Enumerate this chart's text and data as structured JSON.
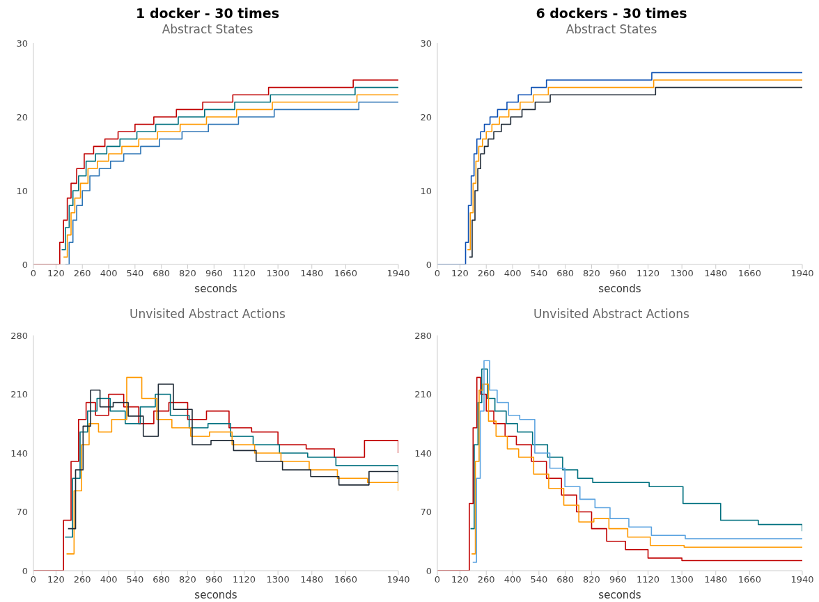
{
  "chart_data": [
    {
      "type": "step",
      "title": "1 docker - 30 times",
      "subtitle": "Abstract States",
      "xlabel": "seconds",
      "xlim": [
        0,
        1940
      ],
      "xticks": [
        0,
        120,
        260,
        400,
        540,
        680,
        820,
        960,
        1120,
        1300,
        1480,
        1660,
        1940
      ],
      "ylim": [
        0,
        30
      ],
      "yticks": [
        0,
        10,
        20,
        30
      ],
      "series": [
        {
          "color": "#c00000",
          "x": [
            0,
            140,
            160,
            180,
            200,
            230,
            270,
            320,
            380,
            450,
            540,
            640,
            760,
            900,
            1060,
            1250,
            1450,
            1700,
            1940
          ],
          "values": [
            0,
            3,
            6,
            9,
            11,
            13,
            15,
            16,
            17,
            18,
            19,
            20,
            21,
            22,
            23,
            24,
            24,
            25,
            25
          ]
        },
        {
          "color": "#00707f",
          "x": [
            150,
            170,
            190,
            210,
            240,
            280,
            330,
            390,
            460,
            550,
            650,
            770,
            910,
            1070,
            1260,
            1460,
            1710,
            1940
          ],
          "values": [
            2,
            5,
            8,
            10,
            12,
            14,
            15,
            16,
            17,
            18,
            19,
            20,
            21,
            22,
            23,
            23,
            24,
            24
          ]
        },
        {
          "color": "#ff9900",
          "x": [
            160,
            180,
            200,
            220,
            250,
            290,
            340,
            400,
            470,
            560,
            660,
            780,
            920,
            1080,
            1270,
            1470,
            1720,
            1940
          ],
          "values": [
            1,
            4,
            7,
            9,
            11,
            13,
            14,
            15,
            16,
            17,
            18,
            19,
            20,
            21,
            22,
            22,
            23,
            23
          ]
        },
        {
          "color": "#2e75b6",
          "x": [
            170,
            190,
            210,
            230,
            260,
            300,
            350,
            410,
            480,
            570,
            670,
            790,
            930,
            1090,
            1280,
            1480,
            1730,
            1940
          ],
          "values": [
            0,
            3,
            6,
            8,
            10,
            12,
            13,
            14,
            15,
            16,
            17,
            18,
            19,
            20,
            21,
            21,
            22,
            22
          ]
        }
      ]
    },
    {
      "type": "step",
      "title": "6 dockers - 30 times",
      "subtitle": "Abstract States",
      "xlabel": "seconds",
      "xlim": [
        0,
        1940
      ],
      "xticks": [
        0,
        120,
        260,
        400,
        540,
        680,
        820,
        960,
        1120,
        1300,
        1480,
        1660,
        1940
      ],
      "ylim": [
        0,
        30
      ],
      "yticks": [
        0,
        10,
        20,
        30
      ],
      "series": [
        {
          "color": "#0b4fb3",
          "x": [
            0,
            150,
            165,
            180,
            195,
            210,
            230,
            250,
            280,
            320,
            370,
            430,
            500,
            580,
            1140,
            1940
          ],
          "values": [
            0,
            3,
            8,
            12,
            15,
            17,
            18,
            19,
            20,
            21,
            22,
            23,
            24,
            25,
            26,
            26
          ]
        },
        {
          "color": "#ff9900",
          "x": [
            160,
            175,
            190,
            205,
            220,
            240,
            260,
            290,
            330,
            380,
            440,
            510,
            590,
            1150,
            1940
          ],
          "values": [
            2,
            7,
            11,
            14,
            16,
            17,
            18,
            19,
            20,
            21,
            22,
            23,
            24,
            25,
            25
          ]
        },
        {
          "color": "#1f2a36",
          "x": [
            170,
            185,
            200,
            215,
            230,
            250,
            270,
            300,
            340,
            390,
            450,
            520,
            600,
            1160,
            1940
          ],
          "values": [
            1,
            6,
            10,
            13,
            15,
            16,
            17,
            18,
            19,
            20,
            21,
            22,
            23,
            24,
            24
          ]
        }
      ]
    },
    {
      "type": "step",
      "title": "Unvisited Abstract Actions",
      "xlabel": "seconds",
      "xlim": [
        0,
        1940
      ],
      "xticks": [
        0,
        120,
        260,
        400,
        540,
        680,
        820,
        960,
        1120,
        1300,
        1480,
        1660,
        1940
      ],
      "ylim": [
        0,
        280
      ],
      "yticks": [
        0,
        70,
        140,
        210,
        280
      ],
      "series": [
        {
          "color": "#c00000",
          "x": [
            0,
            130,
            160,
            200,
            240,
            280,
            330,
            400,
            480,
            560,
            640,
            720,
            820,
            920,
            1040,
            1160,
            1300,
            1450,
            1600,
            1760,
            1940
          ],
          "values": [
            0,
            0,
            60,
            130,
            180,
            200,
            185,
            210,
            195,
            175,
            190,
            200,
            180,
            190,
            170,
            165,
            150,
            145,
            135,
            155,
            140
          ]
        },
        {
          "color": "#00707f",
          "x": [
            168,
            208,
            248,
            288,
            338,
            408,
            488,
            568,
            648,
            728,
            828,
            928,
            1048,
            1168,
            1308,
            1458,
            1608,
            1768,
            1940
          ],
          "values": [
            40,
            110,
            165,
            190,
            205,
            190,
            175,
            195,
            210,
            185,
            170,
            175,
            160,
            150,
            140,
            135,
            125,
            125,
            115
          ]
        },
        {
          "color": "#ff9900",
          "x": [
            176,
            216,
            256,
            296,
            346,
            416,
            496,
            576,
            656,
            736,
            836,
            936,
            1056,
            1176,
            1316,
            1466,
            1616,
            1776,
            1940
          ],
          "values": [
            20,
            95,
            150,
            175,
            165,
            180,
            230,
            205,
            180,
            170,
            160,
            165,
            150,
            140,
            130,
            120,
            110,
            105,
            95
          ]
        },
        {
          "color": "#1f2a36",
          "x": [
            184,
            224,
            264,
            304,
            354,
            424,
            504,
            584,
            664,
            744,
            844,
            944,
            1064,
            1184,
            1324,
            1474,
            1624,
            1784,
            1940
          ],
          "values": [
            50,
            120,
            172,
            215,
            195,
            200,
            184,
            160,
            222,
            192,
            150,
            155,
            143,
            130,
            120,
            112,
            102,
            118,
            105
          ]
        }
      ]
    },
    {
      "type": "step",
      "title": "Unvisited Abstract Actions",
      "xlabel": "seconds",
      "xlim": [
        0,
        1940
      ],
      "xticks": [
        0,
        120,
        260,
        400,
        540,
        680,
        820,
        960,
        1120,
        1300,
        1480,
        1660,
        1940
      ],
      "ylim": [
        0,
        280
      ],
      "yticks": [
        0,
        70,
        140,
        210,
        280
      ],
      "series": [
        {
          "color": "#c00000",
          "x": [
            0,
            150,
            170,
            190,
            210,
            230,
            260,
            300,
            360,
            420,
            500,
            580,
            660,
            740,
            820,
            900,
            1000,
            1120,
            1300,
            1500,
            1700,
            1940
          ],
          "values": [
            0,
            0,
            80,
            170,
            230,
            210,
            190,
            175,
            160,
            150,
            130,
            110,
            90,
            70,
            50,
            35,
            25,
            15,
            12,
            12,
            12,
            12
          ]
        },
        {
          "color": "#00707f",
          "x": [
            176,
            196,
            216,
            236,
            266,
            306,
            366,
            426,
            506,
            586,
            666,
            746,
            826,
            906,
            1006,
            1126,
            1306,
            1506,
            1706,
            1940
          ],
          "values": [
            50,
            150,
            200,
            240,
            205,
            190,
            175,
            165,
            150,
            135,
            120,
            110,
            105,
            105,
            105,
            100,
            80,
            60,
            55,
            47
          ]
        },
        {
          "color": "#ff9900",
          "x": [
            182,
            202,
            222,
            242,
            272,
            312,
            372,
            432,
            512,
            592,
            672,
            752,
            832,
            912,
            1012,
            1132,
            1312,
            1512,
            1712,
            1940
          ],
          "values": [
            20,
            130,
            215,
            222,
            178,
            160,
            145,
            135,
            115,
            98,
            78,
            58,
            62,
            50,
            40,
            30,
            28,
            28,
            28,
            28
          ]
        },
        {
          "color": "#5ba3e0",
          "x": [
            188,
            208,
            228,
            248,
            278,
            318,
            378,
            438,
            518,
            598,
            678,
            758,
            838,
            918,
            1018,
            1138,
            1318,
            1518,
            1718,
            1940
          ],
          "values": [
            10,
            110,
            190,
            250,
            215,
            200,
            185,
            180,
            140,
            122,
            100,
            85,
            75,
            62,
            52,
            42,
            38,
            38,
            38,
            38
          ]
        }
      ]
    }
  ]
}
